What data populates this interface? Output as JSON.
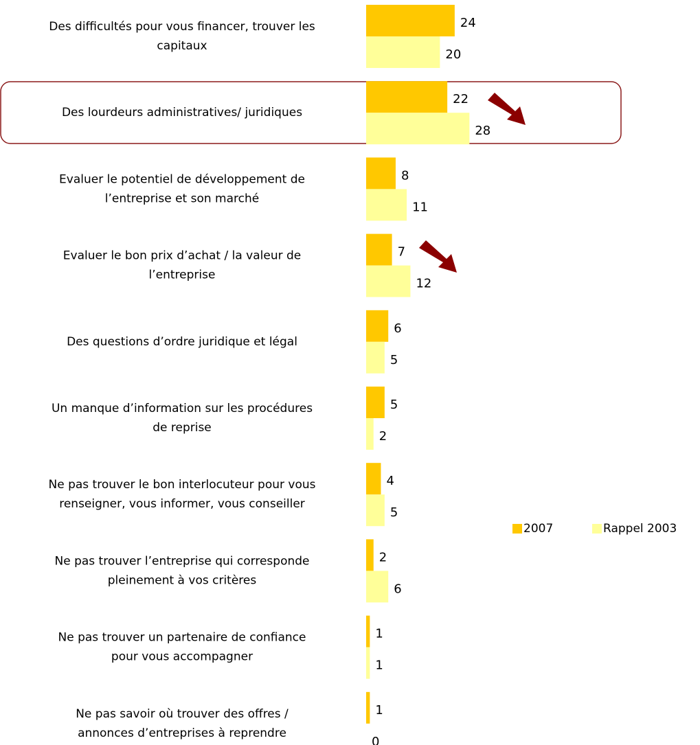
{
  "chart_data": {
    "type": "hbar",
    "categories": [
      "Des difficultés pour vous financer, trouver les\ncapitaux",
      "Des lourdeurs administratives/ juridiques",
      "Evaluer le potentiel de développement de\nl’entreprise et son marché",
      "Evaluer le bon prix d’achat / la valeur de\nl’entreprise",
      "Des questions d’ordre juridique et légal",
      "Un manque d’information sur les procédures\nde reprise",
      "Ne pas trouver le bon interlocuteur pour vous\nrenseigner, vous informer, vous conseiller",
      "Ne pas trouver l’entreprise qui corresponde\npleinement à vos critères",
      "Ne pas trouver un partenaire de confiance\npour vous accompagner",
      "Ne pas savoir où trouver des offres /\nannonces d’entreprises à reprendre"
    ],
    "series": [
      {
        "name": "2007",
        "color": "#ffc800",
        "values": [
          24,
          22,
          8,
          7,
          6,
          5,
          4,
          2,
          1,
          1
        ]
      },
      {
        "name": "Rappel 2003",
        "color": "#ffff99",
        "values": [
          20,
          28,
          11,
          12,
          5,
          2,
          5,
          6,
          1,
          0
        ]
      }
    ],
    "legend": "bottom-right"
  }
}
